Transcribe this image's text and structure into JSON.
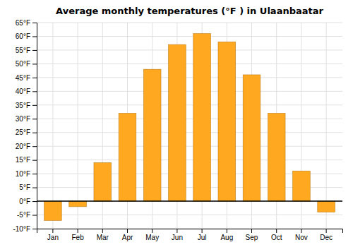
{
  "chart_data": {
    "type": "bar",
    "title": "Average monthly temperatures (°F ) in Ulaanbaatar",
    "categories": [
      "Jan",
      "Feb",
      "Mar",
      "Apr",
      "May",
      "Jun",
      "Jul",
      "Aug",
      "Sep",
      "Oct",
      "Nov",
      "Dec"
    ],
    "values": [
      -7,
      -2,
      14,
      32,
      48,
      57,
      61,
      58,
      46,
      32,
      11,
      -4
    ],
    "color": "#FFA820",
    "ylim": [
      -10,
      65
    ],
    "yticks": [
      {
        "value": -10,
        "label": "-10°F"
      },
      {
        "value": -5,
        "label": "-5°F"
      },
      {
        "value": 0,
        "label": "0°F"
      },
      {
        "value": 5,
        "label": "5°F"
      },
      {
        "value": 10,
        "label": "10°F"
      },
      {
        "value": 15,
        "label": "15°F"
      },
      {
        "value": 20,
        "label": "20°F"
      },
      {
        "value": 25,
        "label": "25°F"
      },
      {
        "value": 30,
        "label": "30°F"
      },
      {
        "value": 35,
        "label": "35°F"
      },
      {
        "value": 40,
        "label": "40°F"
      },
      {
        "value": 45,
        "label": "45°F"
      },
      {
        "value": 50,
        "label": "50°F"
      },
      {
        "value": 55,
        "label": "55°F"
      },
      {
        "value": 60,
        "label": "60°F"
      },
      {
        "value": 65,
        "label": "65°F"
      }
    ],
    "grid": true
  }
}
